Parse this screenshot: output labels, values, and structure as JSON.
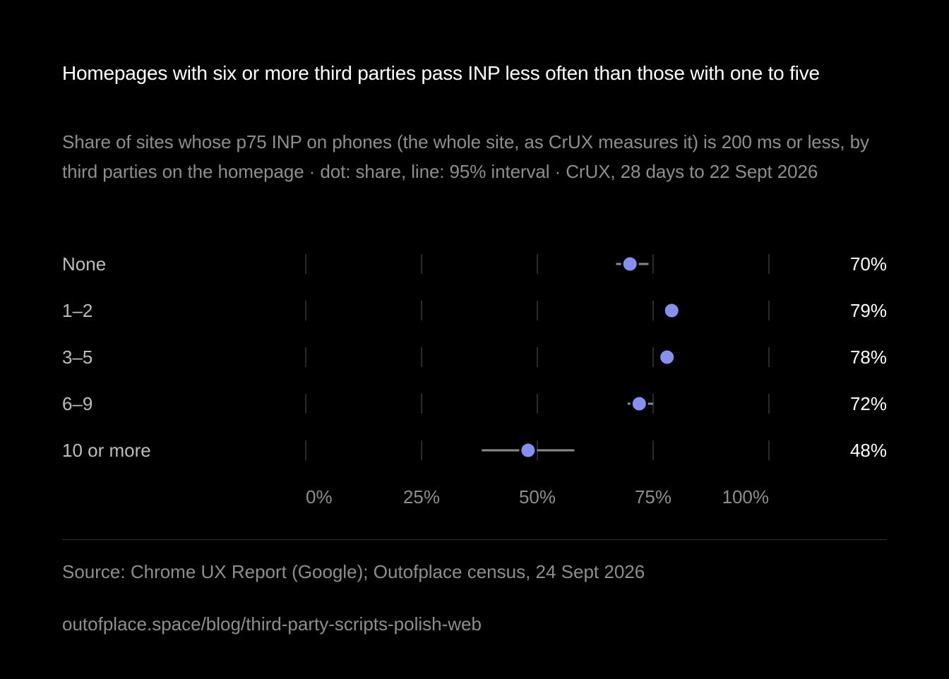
{
  "header": {
    "title": "Homepages with six or more third parties pass INP less often than those with one to five",
    "subtitle": "Share of sites whose p75 INP on phones (the whole site, as CrUX measures it) is 200 ms or less, by third parties on the homepage · dot: share, line: 95% interval · CrUX, 28 days to 22 Sept 2026"
  },
  "chart_data": {
    "type": "dot-interval",
    "title": "Homepages with six or more third parties pass INP less often than those with one to five",
    "xlim": [
      0,
      100
    ],
    "x_ticks": [
      0,
      25,
      50,
      75,
      100
    ],
    "x_tick_labels": [
      "0%",
      "25%",
      "50%",
      "75%",
      "100%"
    ],
    "grid": true,
    "categories": [
      "None",
      "1–2",
      "3–5",
      "6–9",
      "10 or more"
    ],
    "values": [
      70,
      79,
      78,
      72,
      48
    ],
    "value_labels": [
      "70%",
      "79%",
      "78%",
      "72%",
      "48%"
    ],
    "ci_low": [
      67,
      78.5,
      77.5,
      69.5,
      38
    ],
    "ci_high": [
      74,
      79.5,
      78.5,
      75,
      58
    ],
    "colors": {
      "dot": "#8690f0",
      "interval": "#8a8a8a",
      "grid": "#2a2a2a"
    }
  },
  "footer": {
    "source": "Source: Chrome UX Report (Google); Outofplace census, 24 Sept 2026",
    "url": "outofplace.space/blog/third-party-scripts-polish-web"
  }
}
